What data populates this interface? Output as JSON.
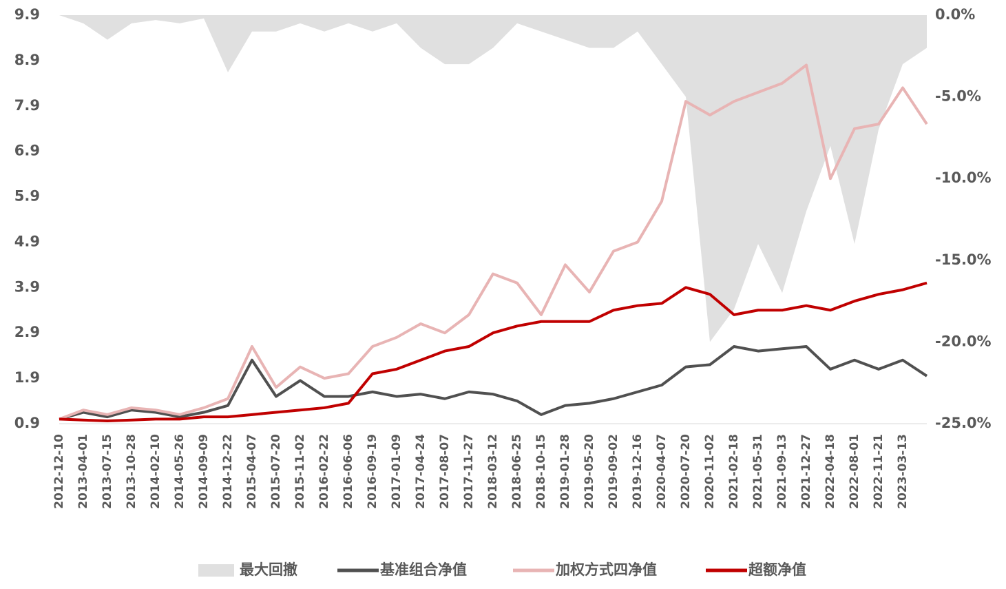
{
  "chart_data": {
    "type": "line",
    "categories": [
      "2012-12-10",
      "2013-04-01",
      "2013-07-15",
      "2013-10-28",
      "2014-02-10",
      "2014-05-26",
      "2014-09-09",
      "2014-12-22",
      "2015-04-07",
      "2015-07-20",
      "2015-11-02",
      "2016-02-22",
      "2016-06-06",
      "2016-09-19",
      "2017-01-09",
      "2017-04-24",
      "2017-08-07",
      "2017-11-27",
      "2018-03-12",
      "2018-06-25",
      "2018-10-15",
      "2019-01-28",
      "2019-05-20",
      "2019-09-02",
      "2019-12-16",
      "2020-04-07",
      "2020-07-20",
      "2020-11-02",
      "2021-02-18",
      "2021-05-31",
      "2021-09-13",
      "2021-12-27",
      "2022-04-18",
      "2022-08-01",
      "2022-11-21",
      "2023-03-13",
      null
    ],
    "ylim": [
      0.9,
      9.9
    ],
    "yticks": [
      0.9,
      1.9,
      2.9,
      3.9,
      4.9,
      5.9,
      6.9,
      7.9,
      8.9,
      9.9
    ],
    "y2lim": [
      -25,
      0
    ],
    "y2ticks": [
      {
        "value": 0,
        "label": "0.0%"
      },
      {
        "value": -5,
        "label": "-5.0%"
      },
      {
        "value": -10,
        "label": "-10.0%"
      },
      {
        "value": -15,
        "label": "-15.0%"
      },
      {
        "value": -20,
        "label": "-20.0%"
      },
      {
        "value": -25,
        "label": "-25.0%"
      }
    ],
    "series": [
      {
        "name": "最大回撤",
        "type": "area",
        "axis": "y2",
        "color": "#e0e0e0",
        "values": [
          0,
          -0.5,
          -1.5,
          -0.5,
          -0.3,
          -0.5,
          -0.2,
          -3.5,
          -1,
          -1,
          -0.5,
          -1,
          -0.5,
          -1,
          -0.5,
          -2,
          -3,
          -3,
          -2,
          -0.5,
          -1,
          -1.5,
          -2,
          -2,
          -1,
          -3,
          -5,
          -20,
          -18,
          -14,
          -17,
          -12,
          -8,
          -14,
          -7,
          -3,
          -2
        ]
      },
      {
        "name": "基准组合净值",
        "color": "#505050",
        "values": [
          1.0,
          1.15,
          1.05,
          1.2,
          1.15,
          1.05,
          1.15,
          1.3,
          2.3,
          1.5,
          1.85,
          1.5,
          1.5,
          1.6,
          1.5,
          1.55,
          1.45,
          1.6,
          1.55,
          1.4,
          1.1,
          1.3,
          1.35,
          1.45,
          1.6,
          1.75,
          2.15,
          2.2,
          2.6,
          2.5,
          2.55,
          2.6,
          2.1,
          2.3,
          2.1,
          2.3,
          1.95
        ]
      },
      {
        "name": "加权方式四净值",
        "color": "#e8b4b4",
        "values": [
          1.0,
          1.2,
          1.1,
          1.25,
          1.2,
          1.1,
          1.25,
          1.45,
          2.6,
          1.7,
          2.15,
          1.9,
          2.0,
          2.6,
          2.8,
          3.1,
          2.9,
          3.3,
          4.2,
          4.0,
          3.3,
          4.4,
          3.8,
          4.7,
          4.9,
          5.8,
          8.0,
          7.7,
          8.0,
          8.2,
          8.4,
          8.8,
          6.3,
          7.4,
          7.5,
          8.3,
          7.5
        ]
      },
      {
        "name": "超额净值",
        "color": "#c00000",
        "values": [
          1.0,
          0.98,
          0.96,
          0.98,
          1.0,
          1.0,
          1.05,
          1.05,
          1.1,
          1.15,
          1.2,
          1.25,
          1.35,
          2.0,
          2.1,
          2.3,
          2.5,
          2.6,
          2.9,
          3.05,
          3.15,
          3.15,
          3.15,
          3.4,
          3.5,
          3.55,
          3.9,
          3.75,
          3.3,
          3.4,
          3.4,
          3.5,
          3.4,
          3.6,
          3.75,
          3.85,
          4.0
        ]
      }
    ]
  }
}
